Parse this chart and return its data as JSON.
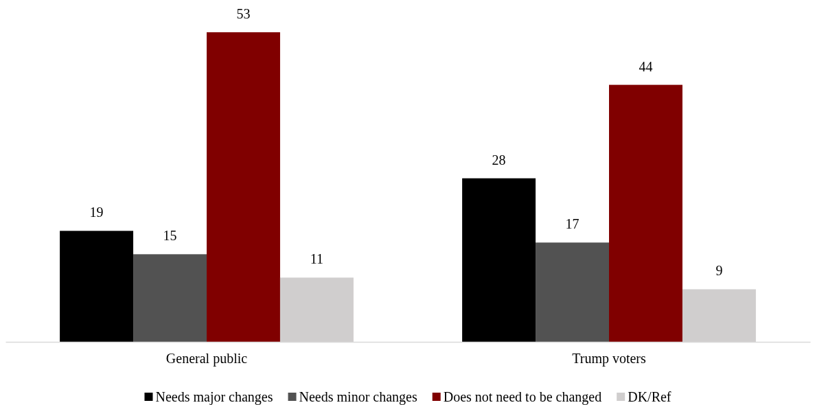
{
  "chart_data": {
    "type": "bar",
    "categories": [
      "General public",
      "Trump voters"
    ],
    "series": [
      {
        "name": "Needs major changes",
        "color": "#000000",
        "values": [
          19,
          28
        ]
      },
      {
        "name": "Needs minor changes",
        "color": "#525252",
        "values": [
          15,
          17
        ]
      },
      {
        "name": "Does not need to be changed",
        "color": "#800000",
        "values": [
          53,
          44
        ]
      },
      {
        "name": "DK/Ref",
        "color": "#d0cece",
        "values": [
          11,
          9
        ]
      }
    ],
    "data_labels": true,
    "legend": "bottom"
  }
}
